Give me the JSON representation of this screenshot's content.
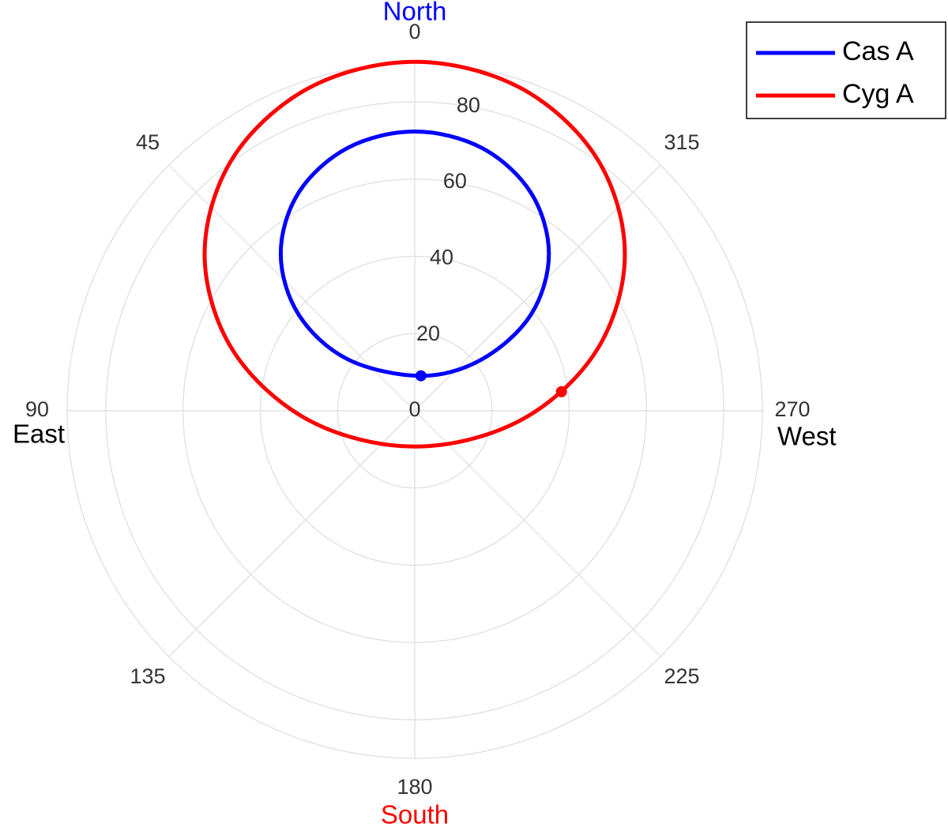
{
  "chart_data": {
    "type": "polar",
    "theta_direction": "counterclockwise",
    "theta_zero": "top",
    "rlim": [
      0,
      90
    ],
    "rticks": [
      0,
      20,
      40,
      60,
      80
    ],
    "thetaticks": [
      0,
      45,
      90,
      135,
      180,
      225,
      270,
      315
    ],
    "grid": true,
    "legend": "top-right",
    "annotations": [
      {
        "text": "North",
        "color": "#0000ff",
        "azimuth": 0
      },
      {
        "text": "East",
        "color": "#000000",
        "azimuth": 90
      },
      {
        "text": "South",
        "color": "#ff0000",
        "azimuth": 180
      },
      {
        "text": "West",
        "color": "#000000",
        "azimuth": 270
      }
    ],
    "series": [
      {
        "name": "Cas A",
        "color": "#0000ff",
        "azimuth": [
          0,
          345.7,
          332.0,
          319.5,
          309.6,
          307.5,
          350,
          52.45,
          50.35,
          40.45,
          28.0,
          14.3
        ],
        "r": [
          72.3,
          70.25,
          64.0,
          53.48,
          39.03,
          21.88,
          9.2,
          21.88,
          39.03,
          53.48,
          64.0,
          70.25
        ],
        "marker_azimuth": 350,
        "marker_r": 9.2
      },
      {
        "name": "Cyg A",
        "color": "#ff0000",
        "azimuth": [
          0,
          342.0,
          324.25,
          306.7,
          288.4,
          264.6,
          180,
          95.4,
          71.6,
          53.3,
          35.75,
          18.0
        ],
        "r": [
          90.35,
          88.0,
          80.64,
          67.85,
          49.64,
          27.32,
          9.25,
          27.32,
          49.64,
          67.85,
          80.64,
          88.0
        ],
        "marker_azimuth": 277.4,
        "marker_r": 38.3
      }
    ]
  }
}
